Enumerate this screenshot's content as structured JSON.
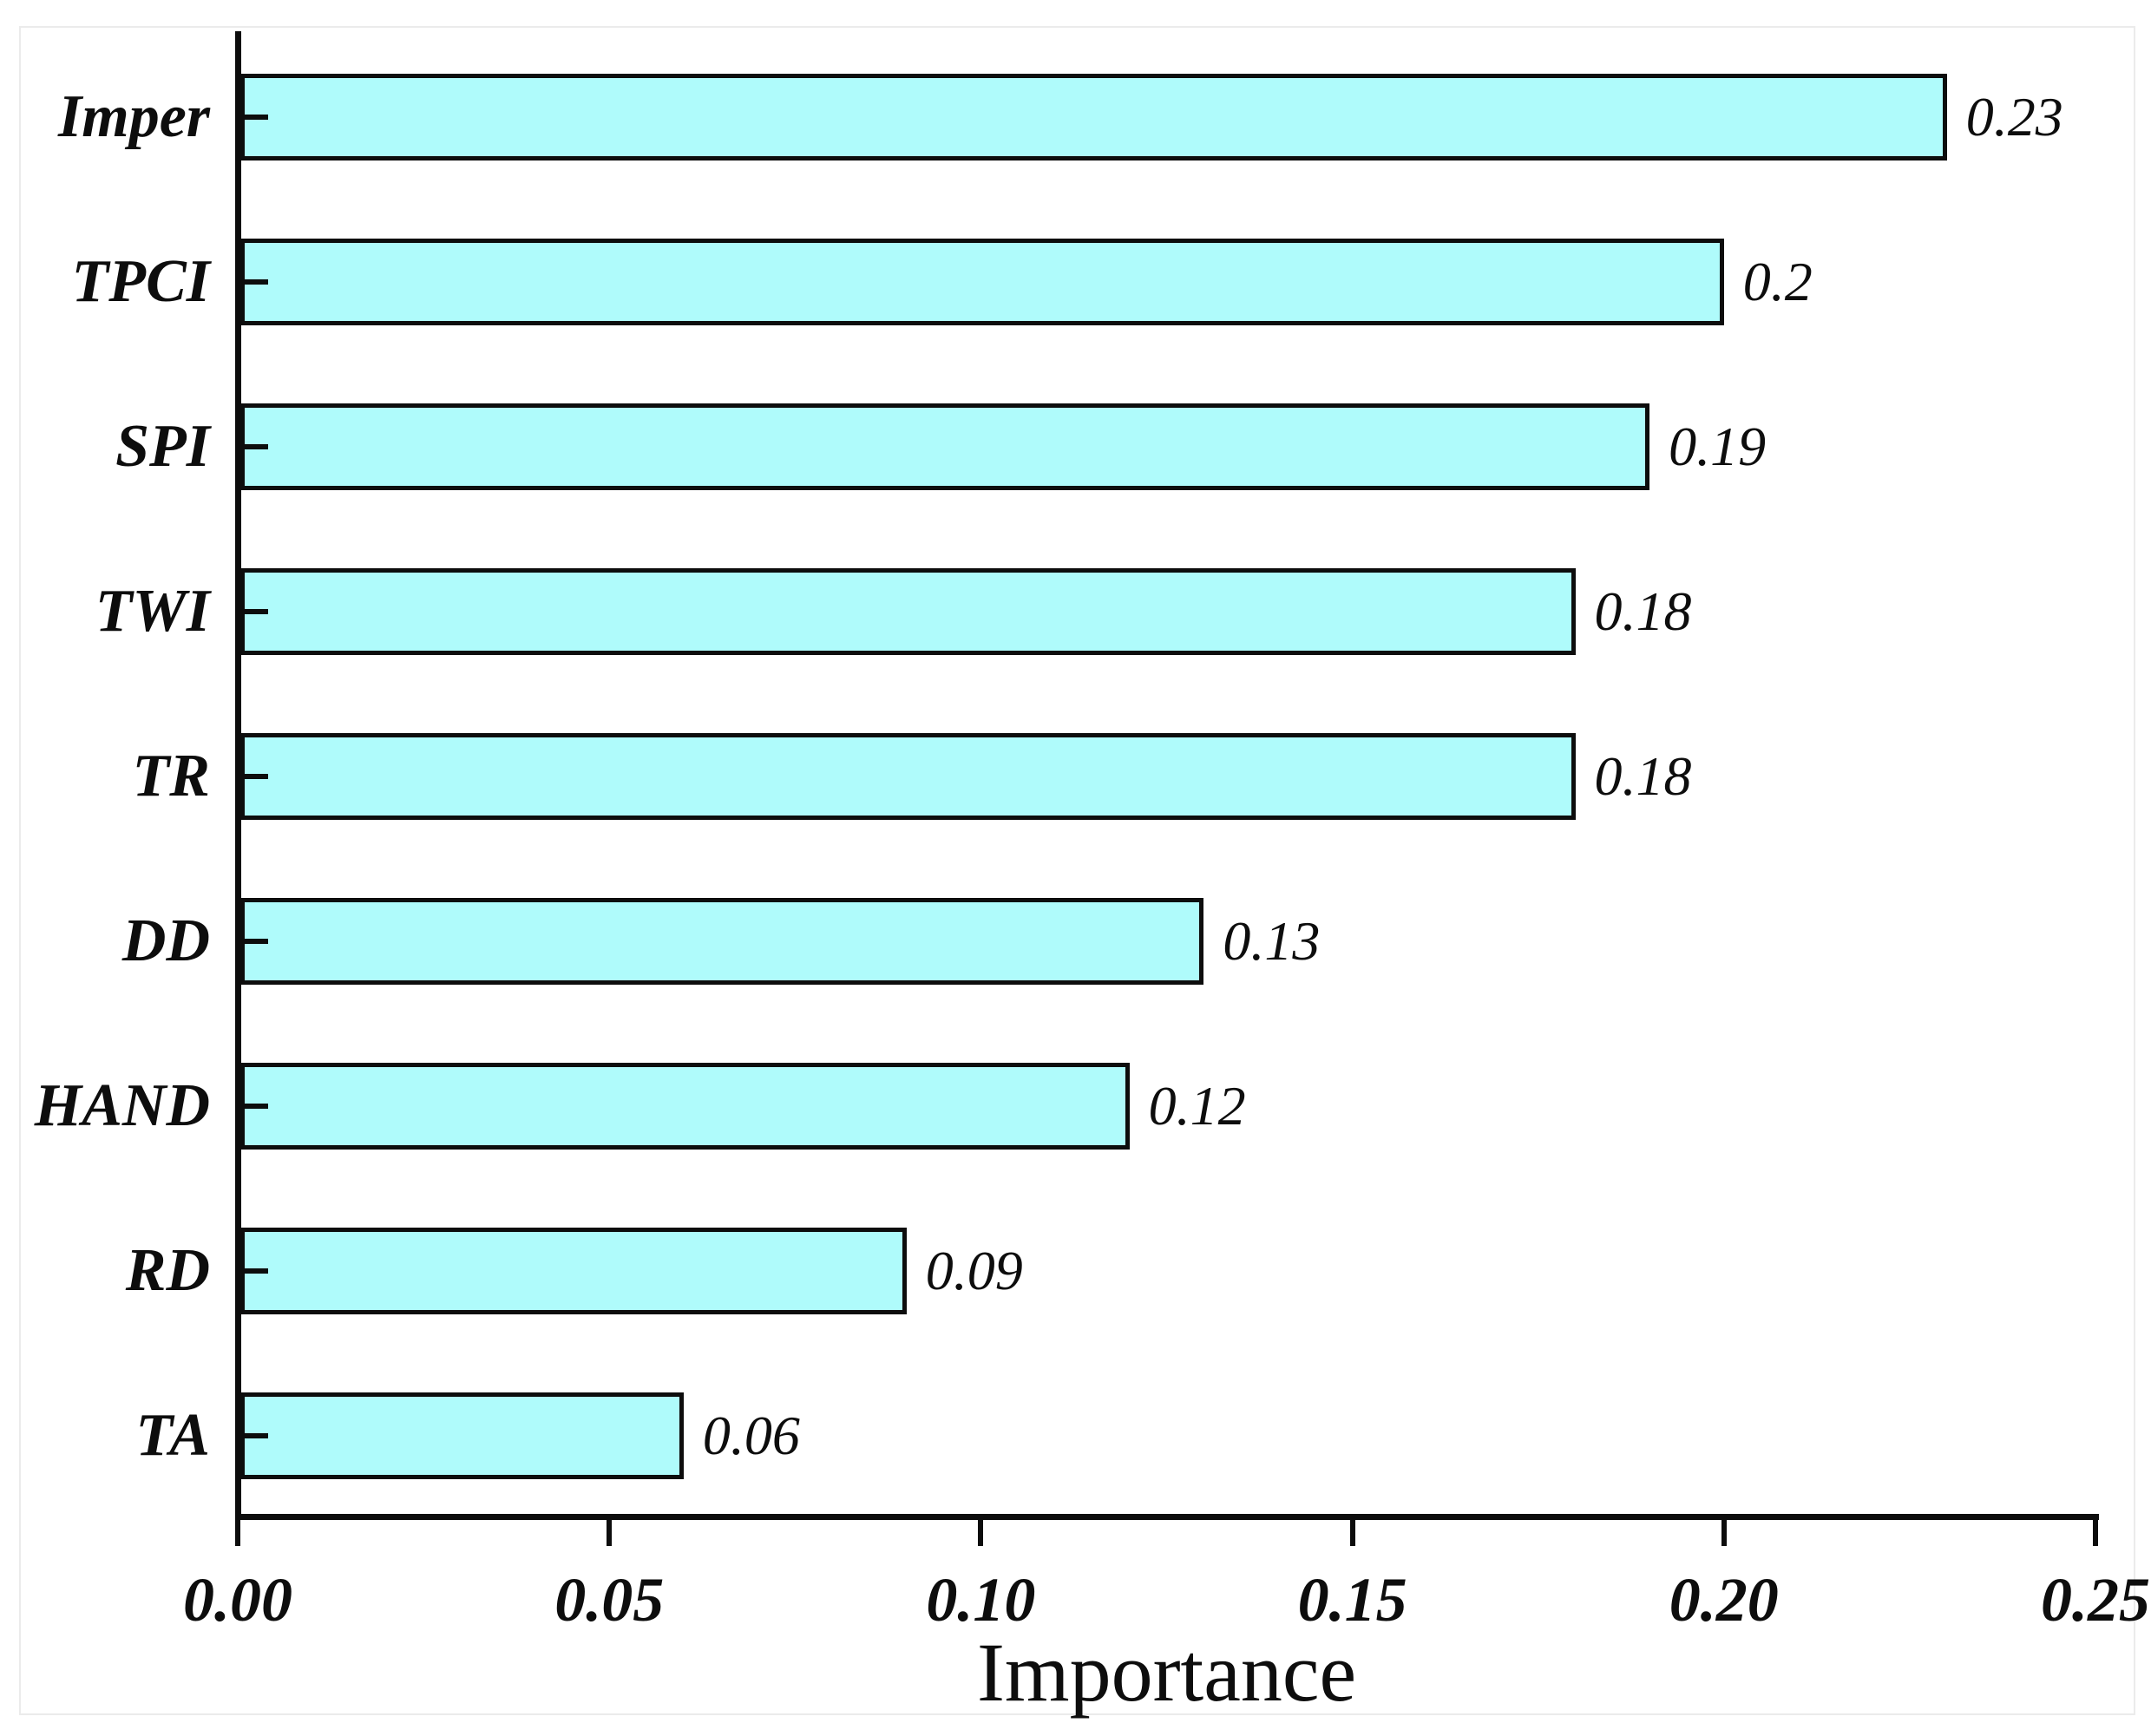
{
  "chart_data": {
    "type": "bar",
    "orientation": "horizontal",
    "title": "",
    "xlabel": "Importance",
    "ylabel": "",
    "categories": [
      "Imper",
      "TPCI",
      "SPI",
      "TWI",
      "TR",
      "DD",
      "HAND",
      "RD",
      "TA"
    ],
    "values": [
      0.23,
      0.2,
      0.19,
      0.18,
      0.18,
      0.13,
      0.12,
      0.09,
      0.06
    ],
    "value_labels": [
      "0.23",
      "0.2",
      "0.19",
      "0.18",
      "0.18",
      "0.13",
      "0.12",
      "0.09",
      "0.06"
    ],
    "xticks": [
      "0.00",
      "0.05",
      "0.10",
      "0.15",
      "0.20",
      "0.25"
    ],
    "xlim": [
      0.0,
      0.25
    ],
    "grid": false,
    "legend_position": "none",
    "bar_color": "#AFFBFB",
    "bar_border_color": "#0d0d0d",
    "axis_color": "#0d0d0d",
    "text_color": "#0d0d0d"
  }
}
